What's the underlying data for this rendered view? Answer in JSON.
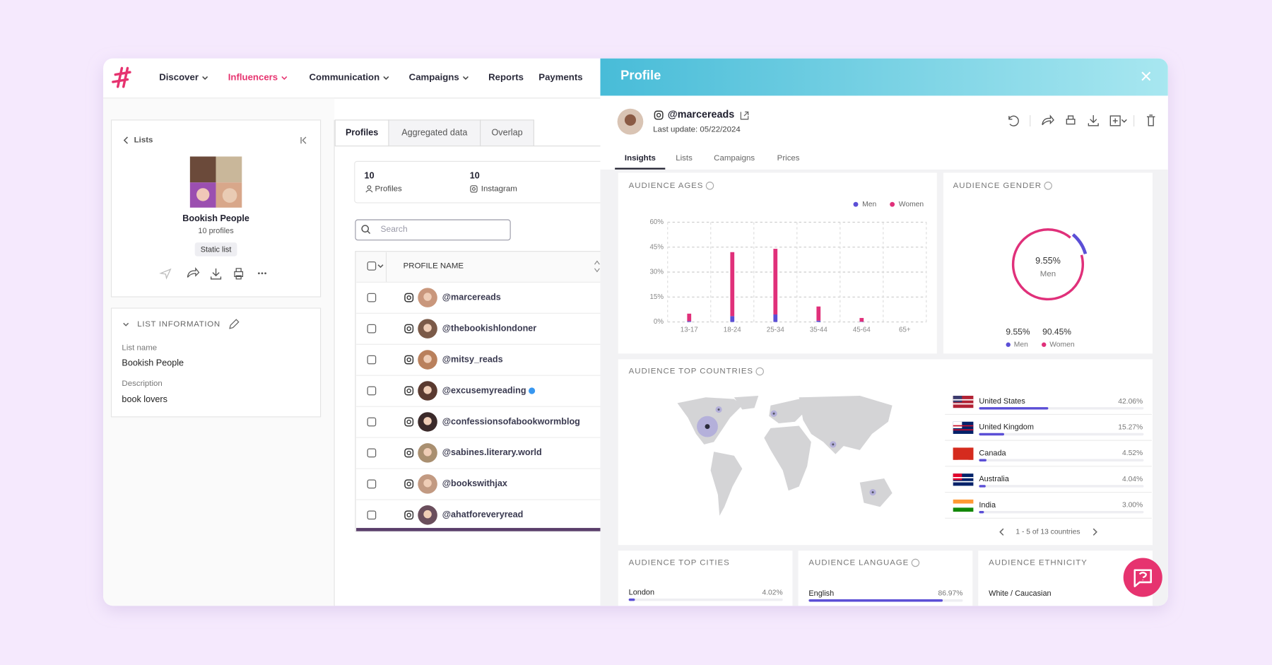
{
  "nav": {
    "items": [
      "Discover",
      "Influencers",
      "Communication",
      "Campaigns",
      "Reports",
      "Payments"
    ]
  },
  "list_card": {
    "back": "Lists",
    "name": "Bookish People",
    "count": "10 profiles",
    "badge": "Static list"
  },
  "list_info": {
    "title": "LIST INFORMATION",
    "fields": [
      {
        "label": "List name",
        "value": "Bookish People"
      },
      {
        "label": "Description",
        "value": "book lovers"
      }
    ]
  },
  "profiles": {
    "tabs": [
      "Profiles",
      "Aggregated data",
      "Overlap"
    ],
    "stats": [
      {
        "value": 10,
        "label": "Profiles"
      },
      {
        "value": 10,
        "label": "Instagram"
      }
    ],
    "search_placeholder": "Search",
    "column": "PROFILE NAME",
    "rows": [
      "@marcereads",
      "@thebookishlondoner",
      "@mitsy_reads",
      "@excusemyreading",
      "@confessionsofabookwormblog",
      "@sabines.literary.world",
      "@bookswithjax",
      "@ahatforeveryread"
    ]
  },
  "profile": {
    "title": "Profile",
    "handle": "@marcereads",
    "last_update": "Last update: 05/22/2024",
    "tabs": [
      "Insights",
      "Lists",
      "Campaigns",
      "Prices"
    ],
    "countries_pagination": "1 - 5 of 13 countries",
    "ethnicity": {
      "title": "AUDIENCE ETHNICITY",
      "label": "White / Caucasian"
    }
  },
  "chart_data": [
    {
      "type": "bar",
      "title": "AUDIENCE AGES",
      "categories": [
        "13-17",
        "18-24",
        "25-34",
        "35-44",
        "45-64",
        "65+"
      ],
      "series": [
        {
          "name": "Men",
          "color": "#5b4fd6",
          "values": [
            0.5,
            3.5,
            4.5,
            0.8,
            0.2,
            0
          ]
        },
        {
          "name": "Women",
          "color": "#e0307a",
          "values": [
            4.5,
            38.5,
            39.5,
            8.5,
            2.2,
            0
          ]
        }
      ],
      "ylim": [
        0,
        60
      ],
      "yticks": [
        {
          "value": 0,
          "label": "0%"
        },
        {
          "value": 15,
          "label": "15%"
        },
        {
          "value": 30,
          "label": "30%"
        },
        {
          "value": 45,
          "label": "45%"
        },
        {
          "value": 60,
          "label": "60%"
        }
      ],
      "grid": true,
      "stacked": true
    },
    {
      "type": "pie",
      "title": "AUDIENCE GENDER",
      "categories": [
        "Men",
        "Women"
      ],
      "values": [
        9.55,
        90.45
      ],
      "value_labels": [
        "9.55%",
        "90.45%"
      ],
      "colors": [
        "#5b4fd6",
        "#e0307a"
      ]
    },
    {
      "type": "hbar",
      "title": "AUDIENCE TOP COUNTRIES",
      "categories": [
        "United States",
        "United Kingdom",
        "Canada",
        "Australia",
        "India"
      ],
      "values": [
        42.06,
        15.27,
        4.52,
        4.04,
        3.0
      ],
      "value_labels": [
        "42.06%",
        "15.27%",
        "4.52%",
        "4.04%",
        "3.00%"
      ],
      "xlim": [
        0,
        100
      ],
      "color": "#5b4fd6"
    },
    {
      "type": "hbar",
      "title": "AUDIENCE TOP CITIES",
      "categories": [
        "London"
      ],
      "values": [
        4.02
      ],
      "value_labels": [
        "4.02%"
      ],
      "xlim": [
        0,
        100
      ],
      "color": "#5b4fd6"
    },
    {
      "type": "hbar",
      "title": "AUDIENCE LANGUAGE",
      "categories": [
        "English"
      ],
      "values": [
        86.97
      ],
      "value_labels": [
        "86.97%"
      ],
      "xlim": [
        0,
        100
      ],
      "color": "#5b4fd6"
    }
  ]
}
